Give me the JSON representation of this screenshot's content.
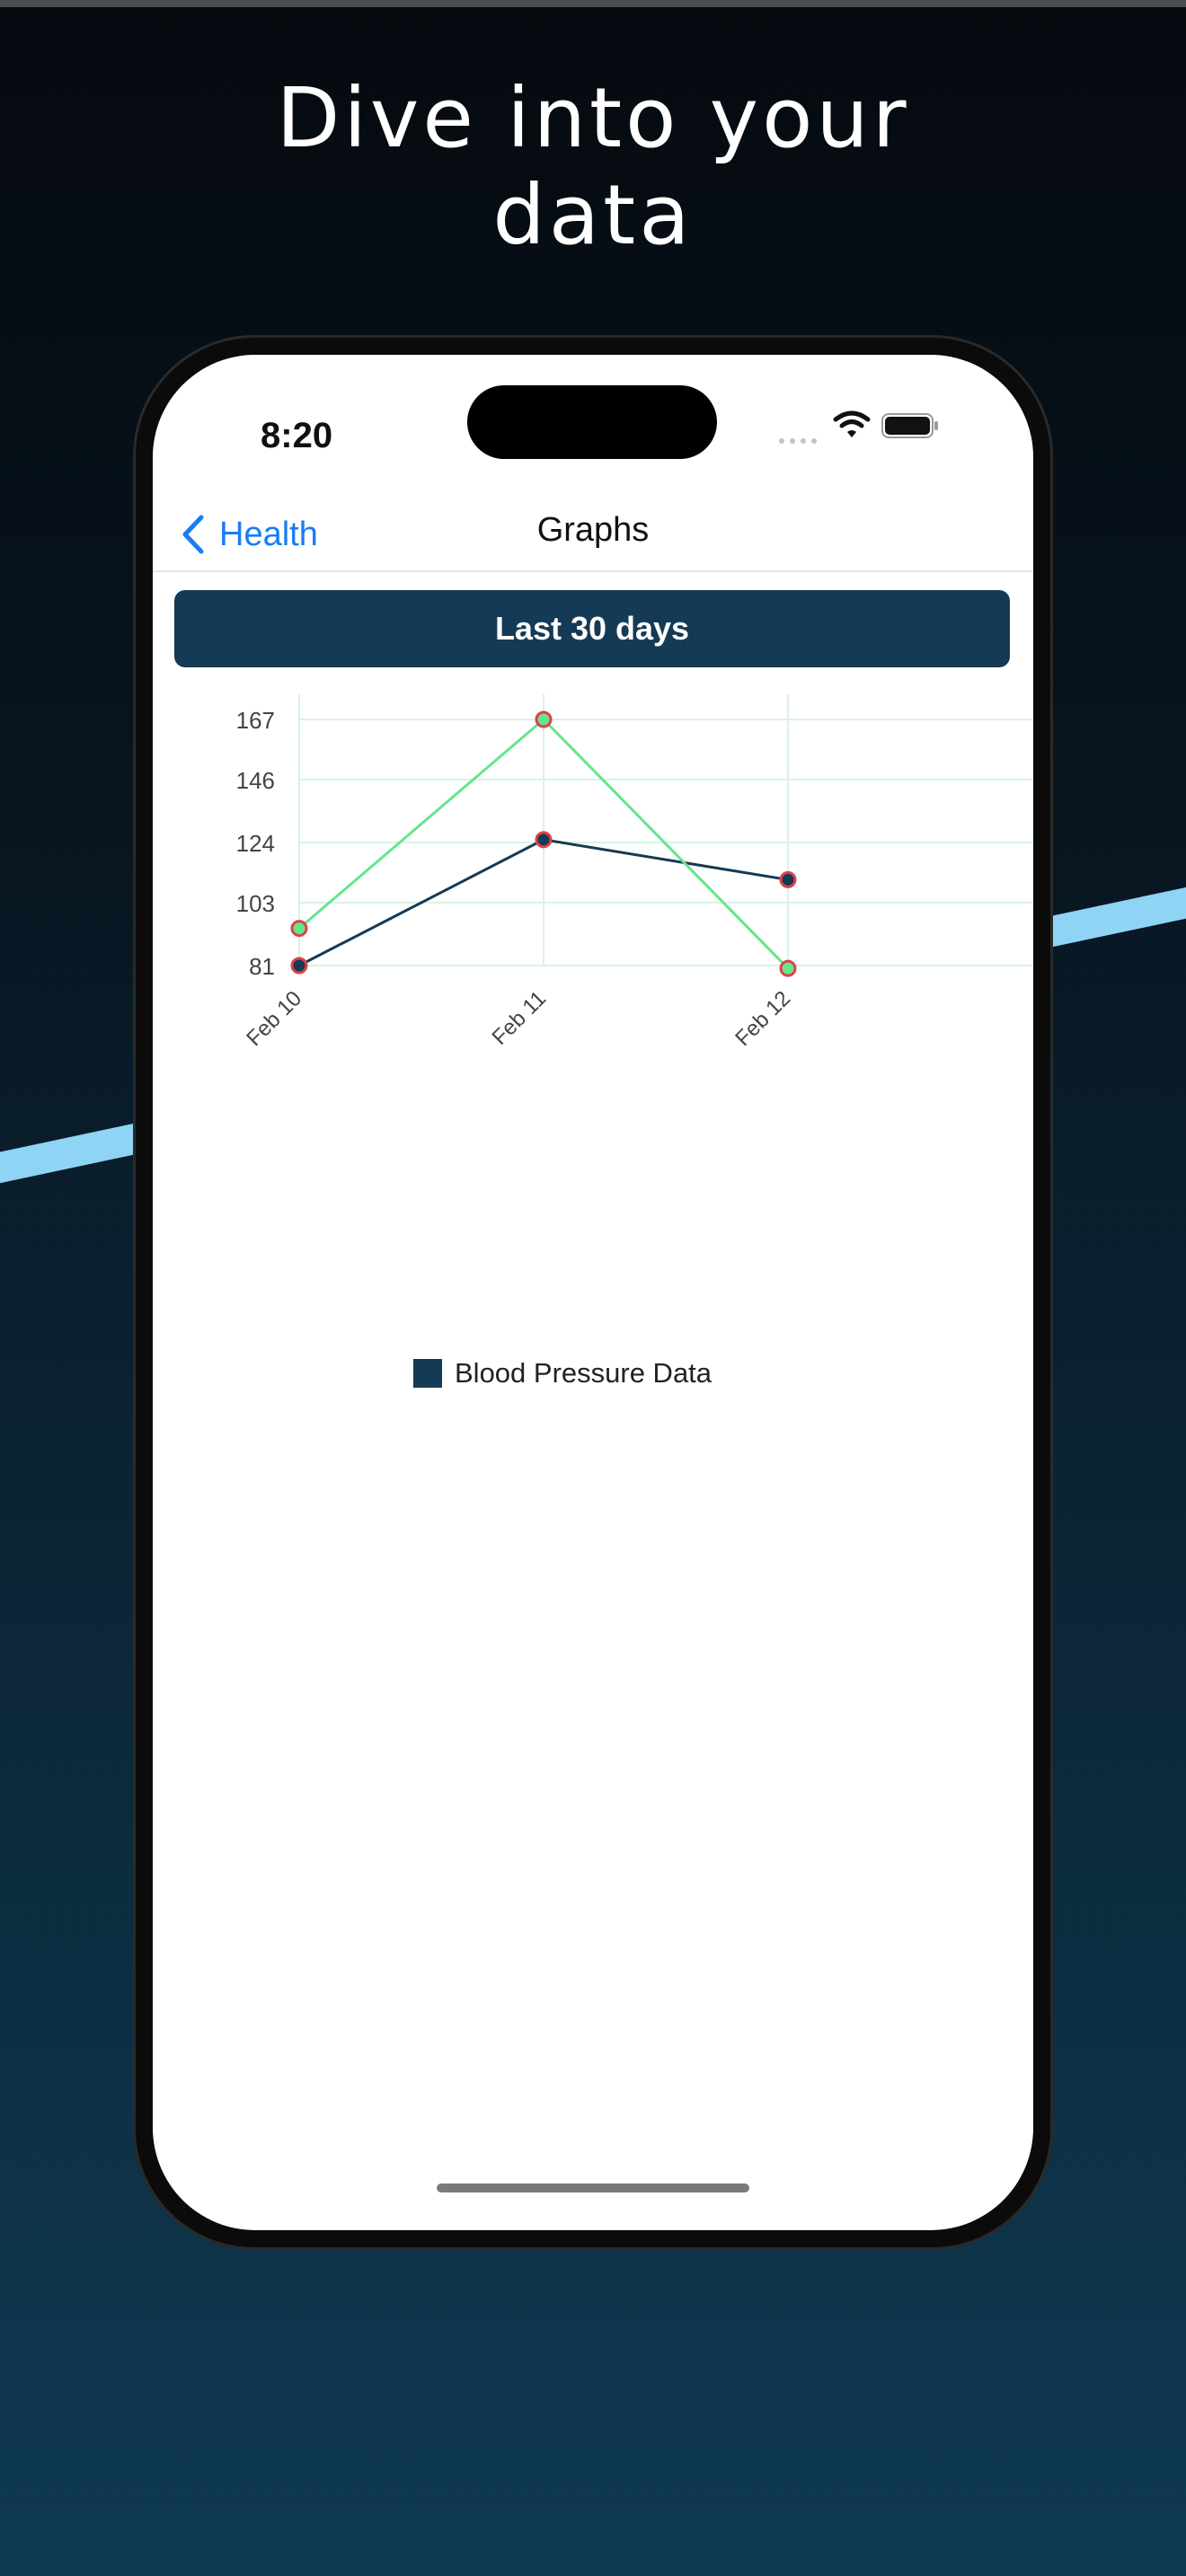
{
  "headline": {
    "line1": "Dive into your",
    "line2": "data"
  },
  "status_bar": {
    "time": "8:20",
    "icons": [
      "cellular-signal-icon",
      "wifi-icon",
      "battery-icon"
    ]
  },
  "nav": {
    "back_label": "Health",
    "title": "Graphs"
  },
  "range_button": {
    "label": "Last 30 days"
  },
  "colors": {
    "accent_navy": "#143a55",
    "link_blue": "#1a7cf5",
    "series_green": "#63e68c",
    "point_red": "#e0404a",
    "grid": "#d6f5e3"
  },
  "chart_data": {
    "type": "line",
    "categories": [
      "Feb 10",
      "Feb 11",
      "Feb 12"
    ],
    "series": [
      {
        "name": "Blood Pressure Data",
        "values": [
          81,
          125,
          111
        ]
      },
      {
        "values": [
          94,
          167,
          80
        ]
      }
    ],
    "y_ticks": [
      167,
      146,
      124,
      103,
      81
    ],
    "ylim": [
      81,
      167
    ],
    "grid": true,
    "legend": "bottom-center"
  }
}
